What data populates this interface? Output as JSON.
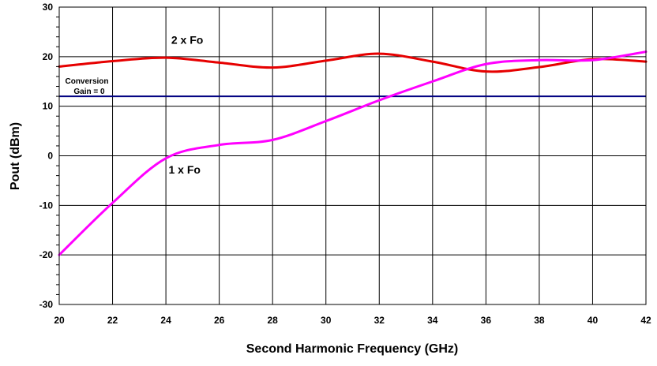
{
  "chart_data": {
    "type": "line",
    "title": "",
    "xlabel": "Second Harmonic Frequency (GHz)",
    "ylabel": "Pout (dBm)",
    "xlim": [
      20,
      42
    ],
    "ylim": [
      -30,
      30
    ],
    "x_ticks": [
      20,
      22,
      24,
      26,
      28,
      30,
      32,
      34,
      36,
      38,
      40,
      42
    ],
    "y_ticks": [
      -30,
      -20,
      -10,
      0,
      10,
      20,
      30
    ],
    "x_tick_labels": [
      "20",
      "22",
      "24",
      "26",
      "28",
      "30",
      "32",
      "34",
      "36",
      "38",
      "40",
      "42"
    ],
    "y_tick_labels": [
      "-30",
      "-20",
      "-10",
      "0",
      "10",
      "20",
      "30"
    ],
    "grid": true,
    "series": [
      {
        "name": "2 x Fo",
        "color": "#e60000",
        "x": [
          20,
          22,
          24,
          26,
          28,
          30,
          32,
          34,
          36,
          38,
          40,
          42
        ],
        "y": [
          18.0,
          19.1,
          19.8,
          18.8,
          17.8,
          19.2,
          20.6,
          19.0,
          17.0,
          17.9,
          19.5,
          19.0
        ]
      },
      {
        "name": "1 x Fo",
        "color": "#ff00ff",
        "x": [
          20,
          22,
          24,
          26,
          28,
          30,
          32,
          34,
          36,
          38,
          40,
          42
        ],
        "y": [
          -20.0,
          -9.5,
          -0.5,
          2.2,
          3.2,
          7.0,
          11.2,
          15.0,
          18.5,
          19.3,
          19.3,
          21.0
        ]
      }
    ],
    "reference_line": {
      "label_line1": "Conversion",
      "label_line2": "Gain = 0",
      "color": "#000080",
      "y": 12
    },
    "annotations": [
      {
        "text": "2 x Fo",
        "x": 24.8,
        "y": 22.6
      },
      {
        "text": "1 x Fo",
        "x": 24.7,
        "y": -3.6
      }
    ]
  }
}
